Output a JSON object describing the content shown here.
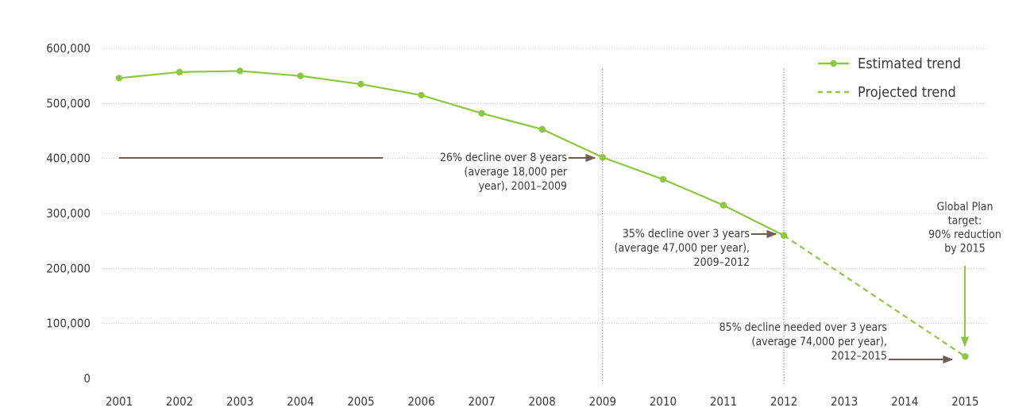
{
  "chart_data": {
    "type": "line",
    "title": "",
    "xlabel": "",
    "ylabel": "",
    "categories": [
      "2001",
      "2002",
      "2003",
      "2004",
      "2005",
      "2006",
      "2007",
      "2008",
      "2009",
      "2010",
      "2011",
      "2012",
      "2013",
      "2014",
      "2015"
    ],
    "ylim": [
      0,
      600000
    ],
    "y_ticks": [
      {
        "value": 0,
        "label": "0"
      },
      {
        "value": 100000,
        "label": "100,000"
      },
      {
        "value": 200000,
        "label": "200,000"
      },
      {
        "value": 300000,
        "label": "300,000"
      },
      {
        "value": 400000,
        "label": "400,000"
      },
      {
        "value": 500000,
        "label": "500,000"
      },
      {
        "value": 600000,
        "label": "600,000"
      }
    ],
    "grid": "horizontal dotted",
    "legend_position": "top-right",
    "series": [
      {
        "name": "Estimated trend",
        "style": "solid",
        "color": "#8dc63f",
        "points": [
          {
            "x": "2001",
            "y": 546000
          },
          {
            "x": "2002",
            "y": 557000
          },
          {
            "x": "2003",
            "y": 559000
          },
          {
            "x": "2004",
            "y": 550000
          },
          {
            "x": "2005",
            "y": 535000
          },
          {
            "x": "2006",
            "y": 515000
          },
          {
            "x": "2007",
            "y": 482000
          },
          {
            "x": "2008",
            "y": 453000
          },
          {
            "x": "2009",
            "y": 402000
          },
          {
            "x": "2010",
            "y": 362000
          },
          {
            "x": "2011",
            "y": 315000
          },
          {
            "x": "2012",
            "y": 260000
          }
        ]
      },
      {
        "name": "Projected trend",
        "style": "dashed",
        "color": "#8dc63f",
        "points": [
          {
            "x": "2012",
            "y": 260000
          },
          {
            "x": "2015",
            "y": 40000
          }
        ]
      }
    ],
    "reference_lines": [
      "2009",
      "2012"
    ],
    "annotations": [
      {
        "lines": [
          "26% decline over 8 years",
          "(average 18,000 per",
          "year), 2001–2009"
        ]
      },
      {
        "lines": [
          "35% decline over 3 years",
          "(average 47,000 per year),",
          "2009–2012"
        ]
      },
      {
        "lines": [
          "85% decline needed over 3 years",
          "(average 74,000 per year),",
          "2012–2015"
        ]
      },
      {
        "lines": [
          "Global Plan",
          "target:",
          "90% reduction",
          "by 2015"
        ]
      }
    ],
    "colors": {
      "line": "#8dc63f",
      "arrow_dark": "#6d5f55",
      "arrow_green": "#8dc63f",
      "grid": "#bdbdbd",
      "text": "#3a3a3a"
    }
  }
}
